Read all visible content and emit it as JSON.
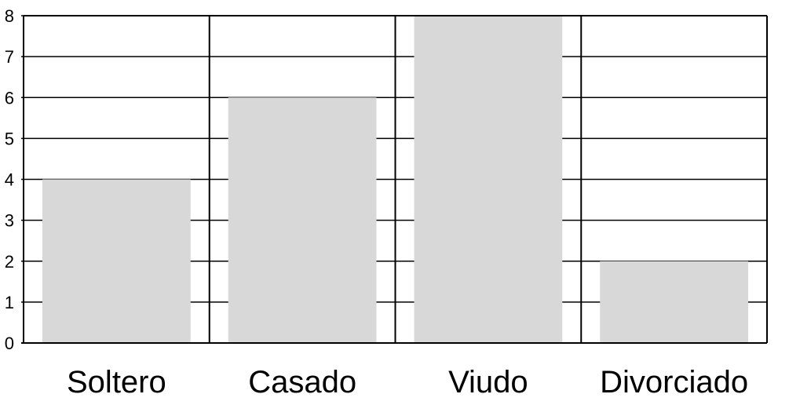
{
  "chart_data": {
    "type": "bar",
    "categories": [
      "Soltero",
      "Casado",
      "Viudo",
      "Divorciado"
    ],
    "values": [
      4,
      6,
      8,
      2
    ],
    "title": "",
    "xlabel": "",
    "ylabel": "",
    "ylim": [
      0,
      8
    ],
    "yticks": [
      "0",
      "1",
      "2",
      "3",
      "4",
      "5",
      "6",
      "7",
      "8"
    ],
    "grid": true,
    "legend": "none",
    "bar_color": "#d8d8d8",
    "grid_color": "#000000"
  }
}
